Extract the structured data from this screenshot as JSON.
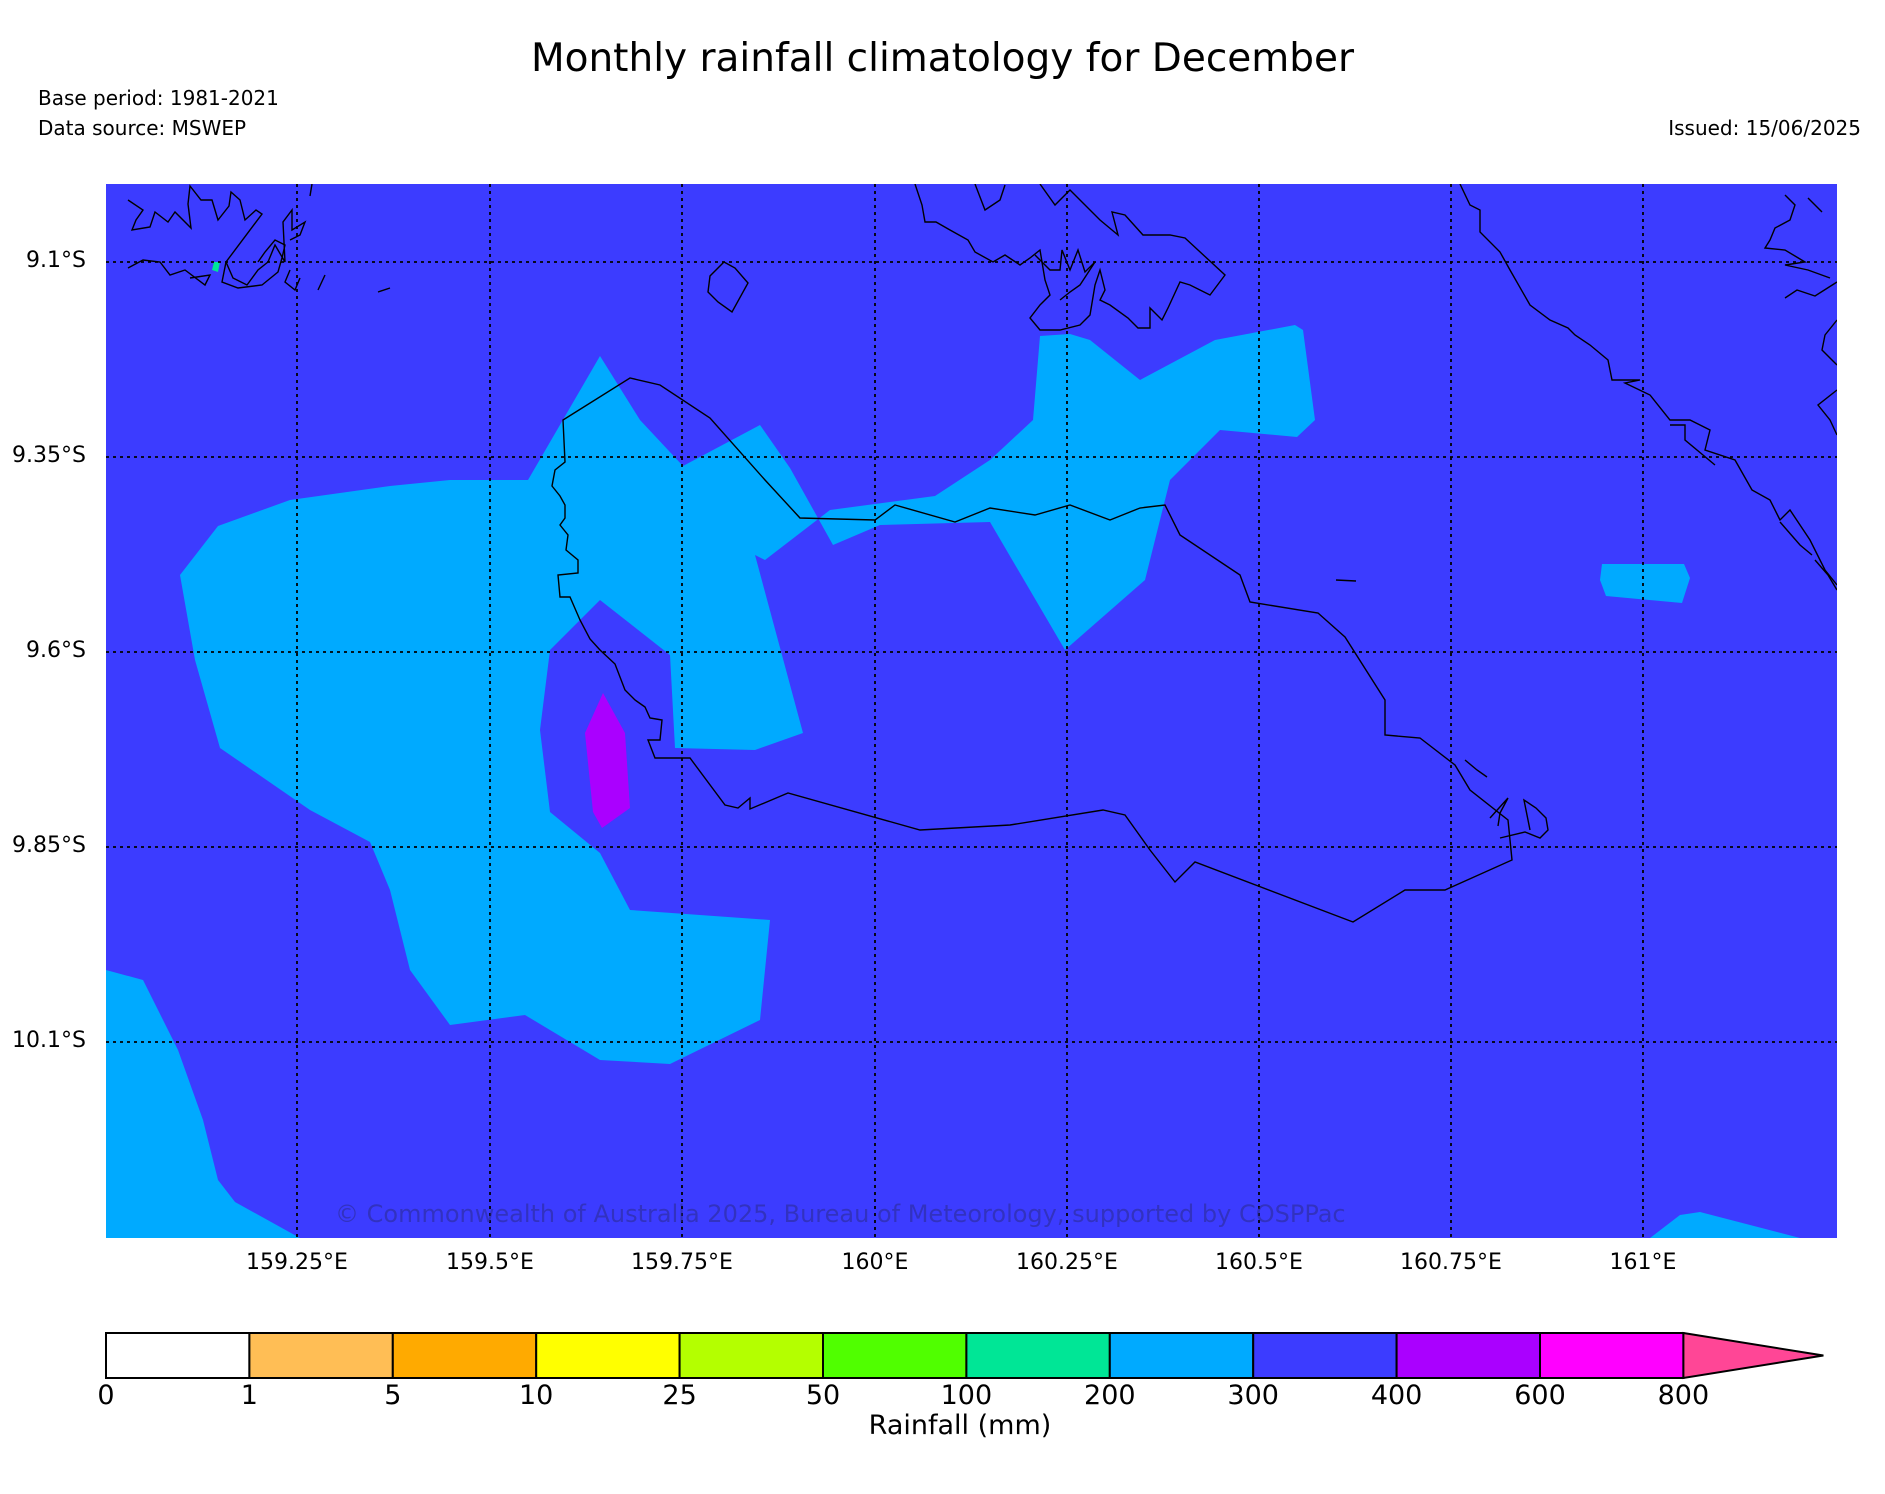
{
  "header": {
    "title": "Monthly rainfall climatology for December",
    "base_period": "Base period: 1981-2021",
    "data_source": "Data source: MSWEP",
    "issued": "Issued: 15/06/2025"
  },
  "map": {
    "lat_labels": [
      "9.1°S",
      "9.35°S",
      "9.6°S",
      "9.85°S",
      "10.1°S"
    ],
    "lon_labels": [
      "159.25°E",
      "159.5°E",
      "159.75°E",
      "160°E",
      "160.25°E",
      "160.5°E",
      "160.75°E",
      "161°E"
    ],
    "background_class": "300-400",
    "copyright": "© Commonwealth of Australia 2025, Bureau of Meteorology, supported by COSPPac"
  },
  "colorbar": {
    "title": "Rainfall (mm)",
    "ticks": [
      "0",
      "1",
      "5",
      "10",
      "25",
      "50",
      "100",
      "200",
      "300",
      "400",
      "600",
      "800"
    ],
    "colors": [
      "#ffffff",
      "#ffbe55",
      "#ffaa00",
      "#ffff00",
      "#b4ff00",
      "#50ff00",
      "#00e696",
      "#00aaff",
      "#3c3cff",
      "#aa00ff",
      "#ff00ff",
      "#ff4696"
    ]
  }
}
